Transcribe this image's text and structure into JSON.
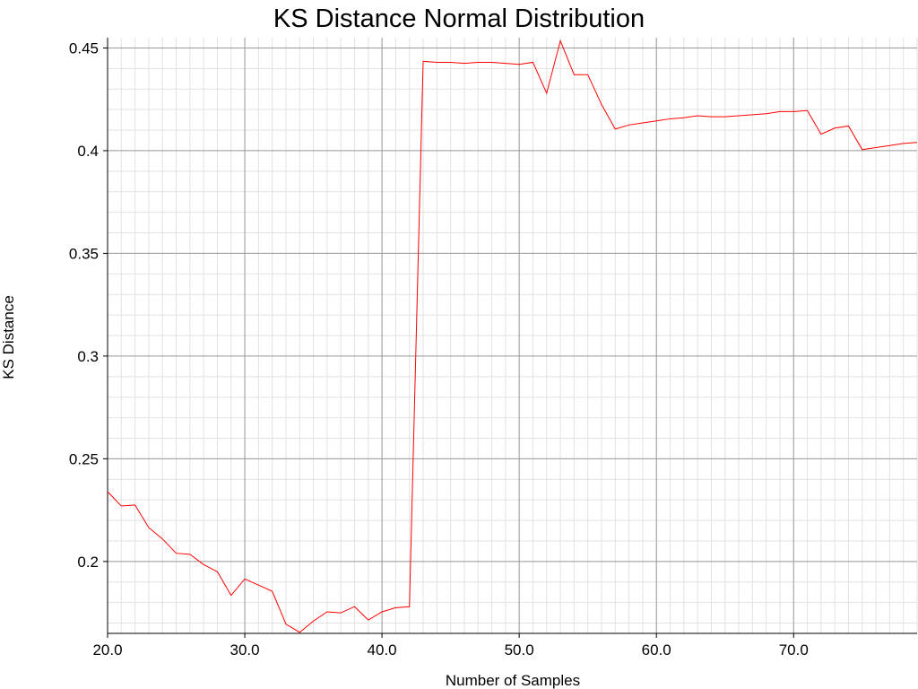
{
  "chart_data": {
    "type": "line",
    "title": "KS Distance Normal Distribution",
    "xlabel": "Number of Samples",
    "ylabel": "KS Distance",
    "xlim": [
      20,
      79
    ],
    "ylim": [
      0.165,
      0.455
    ],
    "grid": true,
    "x_ticks": [
      20,
      30,
      40,
      50,
      60,
      70
    ],
    "x_tick_labels": [
      "20.0",
      "30.0",
      "40.0",
      "50.0",
      "60.0",
      "70.0"
    ],
    "y_ticks": [
      0.2,
      0.25,
      0.3,
      0.35,
      0.4,
      0.45
    ],
    "y_tick_labels": [
      "0.2",
      "0.25",
      "0.3",
      "0.35",
      "0.4",
      "0.45"
    ],
    "line_color": "#ff0000",
    "series": [
      {
        "x": [
          20,
          21,
          22,
          23,
          24,
          25,
          26,
          27,
          28,
          29,
          30,
          31,
          32,
          33,
          34,
          35,
          36,
          37,
          38,
          39,
          40,
          41,
          42,
          43,
          44,
          45,
          46,
          47,
          48,
          49,
          50,
          51,
          52,
          53,
          54,
          55,
          56,
          57,
          58,
          59,
          60,
          61,
          62,
          63,
          64,
          65,
          66,
          67,
          68,
          69,
          70,
          71,
          72,
          73,
          74,
          75,
          76,
          77,
          78,
          79
        ],
        "y": [
          0.234,
          0.227,
          0.2275,
          0.2165,
          0.211,
          0.204,
          0.2035,
          0.1985,
          0.195,
          0.1835,
          0.1915,
          0.1885,
          0.1855,
          0.1695,
          0.1655,
          0.171,
          0.1755,
          0.175,
          0.178,
          0.1715,
          0.1755,
          0.1775,
          0.178,
          0.4435,
          0.443,
          0.443,
          0.4425,
          0.443,
          0.443,
          0.4425,
          0.442,
          0.443,
          0.428,
          0.4535,
          0.437,
          0.437,
          0.4225,
          0.4105,
          0.4125,
          0.4135,
          0.4145,
          0.4155,
          0.416,
          0.417,
          0.4165,
          0.4165,
          0.417,
          0.4175,
          0.418,
          0.419,
          0.419,
          0.4195,
          0.408,
          0.411,
          0.412,
          0.4005,
          0.4015,
          0.4025,
          0.4035,
          0.404
        ]
      }
    ]
  }
}
